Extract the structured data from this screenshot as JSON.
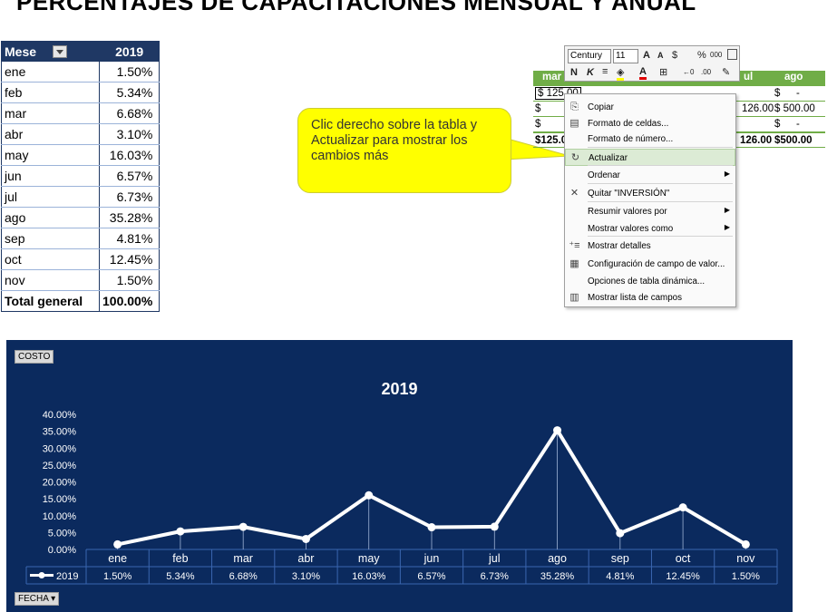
{
  "page": {
    "title": "PERCENTAJES DE CAPACITACIONES MENSUAL Y ANUAL"
  },
  "pivot": {
    "header_label": "Mese",
    "header_year": "2019",
    "rows": [
      {
        "month": "ene",
        "value": "1.50%"
      },
      {
        "month": "feb",
        "value": "5.34%"
      },
      {
        "month": "mar",
        "value": "6.68%"
      },
      {
        "month": "abr",
        "value": "3.10%"
      },
      {
        "month": "may",
        "value": "16.03%"
      },
      {
        "month": "jun",
        "value": "6.57%"
      },
      {
        "month": "jul",
        "value": "6.73%"
      },
      {
        "month": "ago",
        "value": "35.28%"
      },
      {
        "month": "sep",
        "value": "4.81%"
      },
      {
        "month": "oct",
        "value": "12.45%"
      },
      {
        "month": "nov",
        "value": "1.50%"
      }
    ],
    "total_label": "Total general",
    "total_value": "100.00%"
  },
  "callout": {
    "text": "Clic derecho sobre la tabla y Actualizar para mostrar los cambios más"
  },
  "sheet": {
    "headers": [
      "mar",
      "ul",
      "ago"
    ],
    "rows": [
      [
        "$ 125.00",
        "$",
        "-",
        "$",
        "-",
        "$",
        "-",
        "$",
        "-",
        "$",
        "-"
      ],
      [
        "$",
        "-",
        "$",
        "126.00",
        "$ 500.00"
      ],
      [
        "$",
        "-",
        "$",
        "-"
      ],
      [
        "$125.0",
        "126.00",
        "$500.00"
      ]
    ]
  },
  "mini_toolbar": {
    "font": "Century",
    "size": "11",
    "glyphs": [
      "A",
      "A",
      "$",
      "%",
      "000",
      "N",
      "K"
    ]
  },
  "context_menu": {
    "items": [
      {
        "label": "Copiar",
        "icon": "copy-icon"
      },
      {
        "label": "Formato de celdas...",
        "icon": "format-cells-icon"
      },
      {
        "label": "Formato de número...",
        "icon": ""
      },
      {
        "label": "Actualizar",
        "icon": "refresh-icon"
      },
      {
        "label": "Ordenar",
        "icon": ""
      },
      {
        "label": "Quitar \"INVERSIÓN\"",
        "icon": "remove-x-icon"
      },
      {
        "label": "Resumir valores por",
        "icon": ""
      },
      {
        "label": "Mostrar valores como",
        "icon": ""
      },
      {
        "label": "Mostrar detalles",
        "icon": "show-details-icon"
      },
      {
        "label": "Configuración de campo de valor...",
        "icon": "field-settings-icon"
      },
      {
        "label": "Opciones de tabla dinámica...",
        "icon": ""
      },
      {
        "label": "Mostrar lista de campos",
        "icon": "field-list-icon"
      }
    ]
  },
  "chart_buttons": {
    "costo": "COSTO",
    "fecha": "FECHA"
  },
  "chart_data": {
    "type": "line",
    "title": "2019",
    "categories": [
      "ene",
      "feb",
      "mar",
      "abr",
      "may",
      "jun",
      "jul",
      "ago",
      "sep",
      "oct",
      "nov"
    ],
    "series": [
      {
        "name": "2019",
        "values": [
          1.5,
          5.34,
          6.68,
          3.1,
          16.03,
          6.57,
          6.73,
          35.28,
          4.81,
          12.45,
          1.5
        ]
      }
    ],
    "value_labels": [
      "1.50%",
      "5.34%",
      "6.68%",
      "3.10%",
      "16.03%",
      "6.57%",
      "6.73%",
      "35.28%",
      "4.81%",
      "12.45%",
      "1.50%"
    ],
    "y_ticks": [
      "0.00%",
      "5.00%",
      "10.00%",
      "15.00%",
      "20.00%",
      "25.00%",
      "30.00%",
      "35.00%",
      "40.00%"
    ],
    "ylim": [
      0,
      40
    ],
    "data_table": true,
    "legend": "data-table-left",
    "colors": {
      "background": "#0b2a5e",
      "line": "#ffffff",
      "grid": "#3a66b0"
    }
  }
}
